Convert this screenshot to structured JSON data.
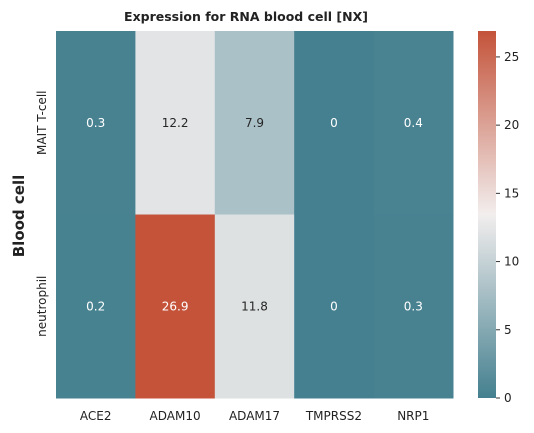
{
  "chart_data": {
    "type": "heatmap",
    "title": "Expression for RNA blood cell [NX]",
    "xlabel": "",
    "ylabel": "Blood cell",
    "x_categories": [
      "ACE2",
      "ADAM10",
      "ADAM17",
      "TMPRSS2",
      "NRP1"
    ],
    "y_categories": [
      "MAIT T-cell",
      "neutrophil"
    ],
    "values": [
      [
        0.3,
        12.2,
        7.9,
        0,
        0.4
      ],
      [
        0.2,
        26.9,
        11.8,
        0,
        0.3
      ]
    ],
    "value_labels": [
      [
        "0.3",
        "12.2",
        "7.9",
        "0",
        "0.4"
      ],
      [
        "0.2",
        "26.9",
        "11.8",
        "0",
        "0.3"
      ]
    ],
    "colorbar": {
      "range": [
        0,
        26.9
      ],
      "ticks": [
        0,
        5,
        10,
        15,
        20,
        25
      ],
      "tick_labels": [
        "0",
        "5",
        "10",
        "15",
        "20",
        "25"
      ]
    },
    "colors": {
      "low": "#44808f",
      "mid": "#f2eeee",
      "high": "#c4533a"
    }
  }
}
